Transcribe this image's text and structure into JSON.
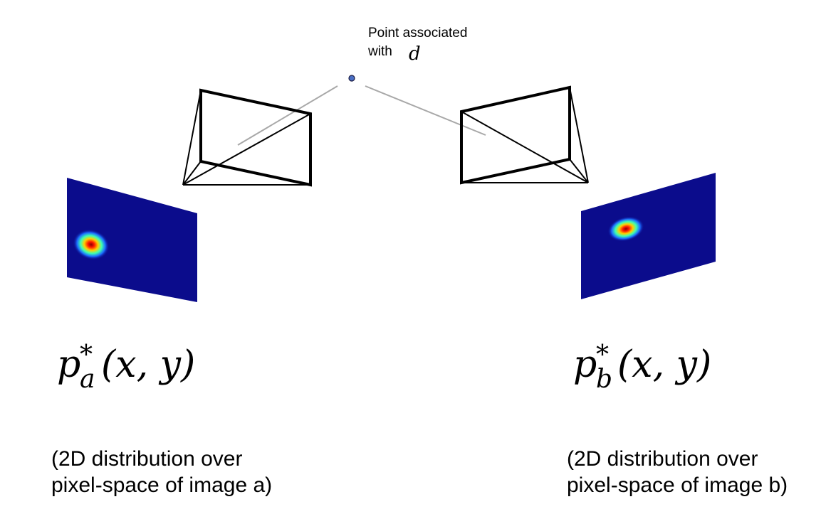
{
  "point": {
    "label_line1": "Point associated",
    "label_line2": "with",
    "symbol": "d"
  },
  "distribution_a": {
    "formula_base": "p",
    "formula_sup": "*",
    "formula_sub": "a",
    "formula_args": "(x, y)",
    "caption_line1": "(2D distribution over",
    "caption_line2": "pixel-space of image a)"
  },
  "distribution_b": {
    "formula_base": "p",
    "formula_sup": "*",
    "formula_sub": "b",
    "formula_args": "(x, y)",
    "caption_line1": "(2D distribution over",
    "caption_line2": "pixel-space of image b)"
  },
  "colors": {
    "heatmap_background": "#0b0c8c",
    "heatmap_peak": "#ff1a00",
    "point_fill": "#4a6fc4",
    "ray": "#a8a8a8",
    "camera_frame": "#000000"
  }
}
